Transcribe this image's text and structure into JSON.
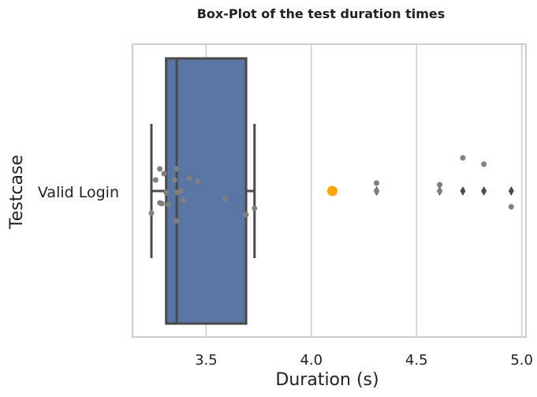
{
  "chart_data": {
    "type": "box",
    "title": "Box-Plot of the test duration times",
    "xlabel": "Duration (s)",
    "ylabel": "Testcase",
    "xlim": [
      3.15,
      5.02
    ],
    "xticks": [
      3.5,
      4.0,
      4.5,
      5.0
    ],
    "xtick_labels": [
      "3.5",
      "4.0",
      "4.5",
      "5.0"
    ],
    "grid": "vertical",
    "categories": [
      "Valid Login"
    ],
    "box": {
      "whisker_low": 3.24,
      "q1": 3.31,
      "median": 3.36,
      "q3": 3.69,
      "whisker_high": 3.73,
      "outliers": [
        4.31,
        4.61,
        4.72,
        4.82,
        4.95
      ]
    },
    "points": [
      3.24,
      3.26,
      3.28,
      3.28,
      3.29,
      3.3,
      3.31,
      3.32,
      3.35,
      3.36,
      3.36,
      3.36,
      3.38,
      3.39,
      3.42,
      3.46,
      3.59,
      3.69,
      3.73,
      4.31,
      4.31,
      4.61,
      4.61,
      4.72,
      4.82,
      4.95
    ],
    "highlight_point": 4.1,
    "colors": {
      "box_fill": "#5875a4",
      "box_edge": "#4a4a4a",
      "points": "#808080",
      "highlight": "#ffa500",
      "grid": "#cccccc",
      "spine": "#cccccc"
    }
  }
}
